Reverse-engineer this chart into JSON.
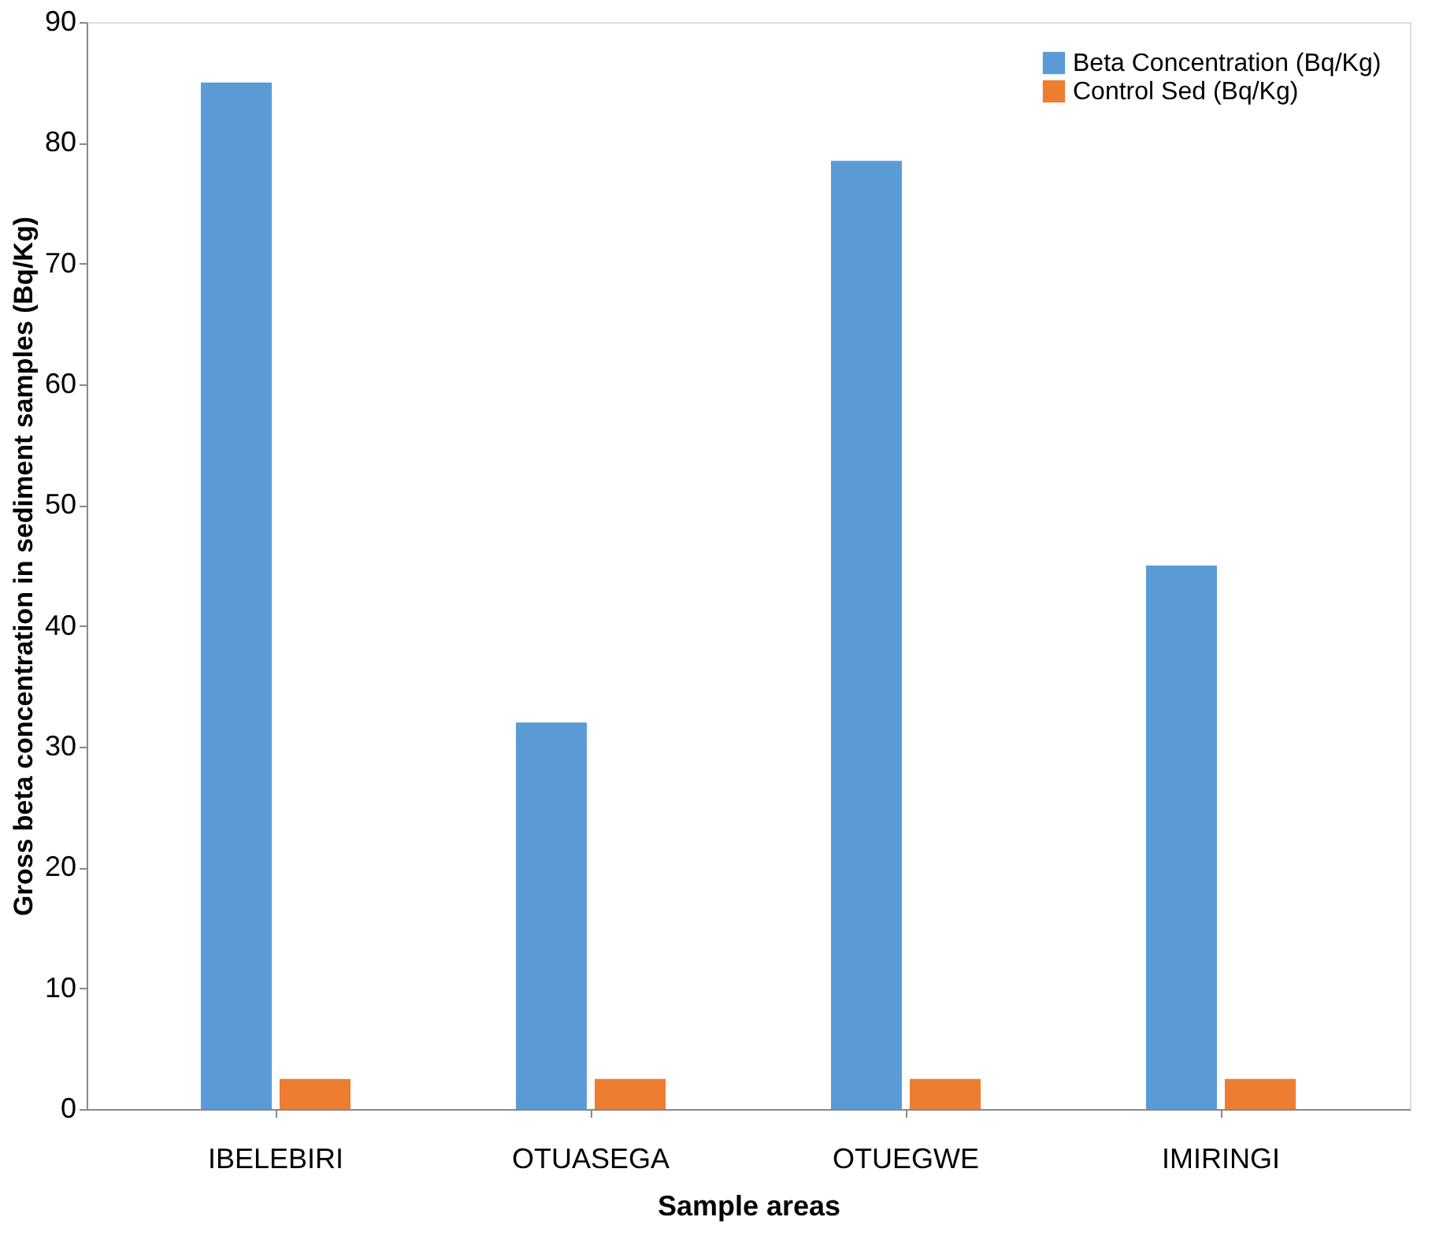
{
  "chart_data": {
    "type": "bar",
    "xlabel": "Sample areas",
    "ylabel": "Gross beta concentration in sediment samples (Bq/Kg)",
    "categories": [
      "IBELEBIRI",
      "OTUASEGA",
      "OTUEGWE",
      "IMIRINGI"
    ],
    "series": [
      {
        "name": "Beta Concentration (Bq/Kg)",
        "color": "#5b9bd5",
        "values": [
          85,
          32,
          78.5,
          45
        ]
      },
      {
        "name": "Control Sed (Bq/Kg)",
        "color": "#ed7d31",
        "values": [
          2.5,
          2.5,
          2.5,
          2.5
        ]
      }
    ],
    "ylim": [
      0,
      90
    ],
    "yticks": [
      0,
      10,
      20,
      30,
      40,
      50,
      60,
      70,
      80,
      90
    ],
    "grid": false,
    "legend": "top right"
  }
}
